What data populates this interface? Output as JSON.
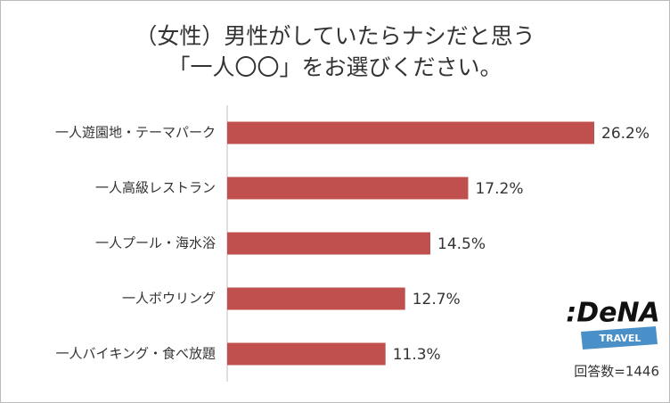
{
  "chart_data": {
    "type": "bar",
    "orientation": "horizontal",
    "title": [
      "（女性）男性がしていたらナシだと思う",
      "「一人〇〇」をお選びください。"
    ],
    "categories": [
      "一人遊園地・テーマパーク",
      "一人高級レストラン",
      "一人プール・海水浴",
      "一人ボウリング",
      "一人バイキング・食べ放題"
    ],
    "values": [
      26.2,
      17.2,
      14.5,
      12.7,
      11.3
    ],
    "value_labels": [
      "26.2%",
      "17.2%",
      "14.5%",
      "12.7%",
      "11.3%"
    ],
    "color": "#c0504d",
    "note": "回答数=1446",
    "logo": {
      "text": ":DeNA",
      "tagline": "TRAVEL"
    }
  }
}
